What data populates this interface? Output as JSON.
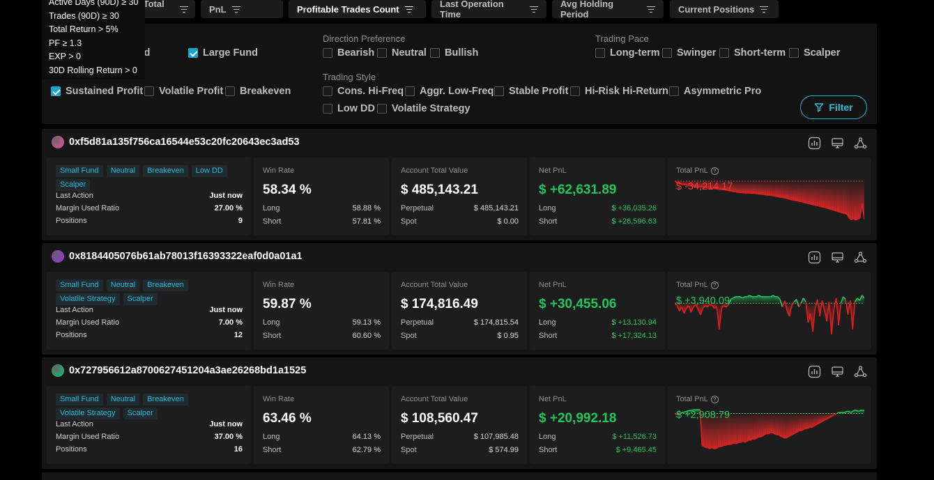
{
  "sort_bar": {
    "buttons": [
      {
        "label": "Account Total Value",
        "active": false
      },
      {
        "label": "PnL",
        "active": false
      },
      {
        "label": "Profitable Trades Count",
        "active": true
      },
      {
        "label": "Last Operation Time",
        "active": false
      },
      {
        "label": "Avg Holding Period",
        "active": false
      },
      {
        "label": "Current Positions",
        "active": false
      }
    ]
  },
  "tooltip": {
    "lines": [
      "Active Days (90D) ≥ 30",
      "Trades (90D) ≥ 30",
      "Total Return > 5%",
      "PF ≥ 1.3",
      "EXP > 0",
      "30D Rolling Return > 0"
    ]
  },
  "filters": {
    "fund_size": {
      "items": [
        {
          "label": "Mid Fund",
          "checked": false
        },
        {
          "label": "Large Fund",
          "checked": true
        }
      ]
    },
    "profit_style": {
      "items": [
        {
          "label": "Sustained Profit",
          "checked": true
        },
        {
          "label": "Volatile Profit",
          "checked": false
        },
        {
          "label": "Breakeven",
          "checked": false
        }
      ]
    },
    "direction": {
      "title": "Direction Preference",
      "items": [
        {
          "label": "Bearish",
          "checked": false
        },
        {
          "label": "Neutral",
          "checked": false
        },
        {
          "label": "Bullish",
          "checked": false
        }
      ]
    },
    "trading_style": {
      "title": "Trading Style",
      "items": [
        {
          "label": "Cons. Hi-Freq",
          "checked": false
        },
        {
          "label": "Aggr. Low-Freq",
          "checked": false
        },
        {
          "label": "Stable Profit",
          "checked": false
        },
        {
          "label": "Hi-Risk Hi-Return",
          "checked": false
        },
        {
          "label": "Asymmetric Pro",
          "checked": false
        },
        {
          "label": "Low DD",
          "checked": false
        },
        {
          "label": "Volatile Strategy",
          "checked": false
        }
      ]
    },
    "pace": {
      "title": "Trading Pace",
      "items": [
        {
          "label": "Long-term",
          "checked": false
        },
        {
          "label": "Swinger",
          "checked": false
        },
        {
          "label": "Short-term",
          "checked": false
        },
        {
          "label": "Scalper",
          "checked": false
        }
      ]
    },
    "filter_button": "Filter"
  },
  "labels": {
    "last_action": "Last Action",
    "margin_used_ratio": "Margin Used Ratio",
    "positions": "Positions",
    "win_rate": "Win Rate",
    "long": "Long",
    "short": "Short",
    "account_total_value": "Account Total Value",
    "perpetual": "Perpetual",
    "spot": "Spot",
    "net_pnl": "Net PnL",
    "total_pnl": "Total PnL"
  },
  "traders": [
    {
      "address": "0xf5d81a135f756ca16544e53c20fc20643ec3ad53",
      "avatar_color": "#c0568f",
      "tags": [
        "Small Fund",
        "Neutral",
        "Breakeven",
        "Low DD",
        "Scalper"
      ],
      "last_action": "Just now",
      "margin_used_ratio": "27.00 %",
      "positions": "9",
      "win_rate": "58.34 %",
      "win_long": "58.88 %",
      "win_short": "57.81 %",
      "account_total_value": "$ 485,143.21",
      "perpetual": "$ 485,143.21",
      "spot": "$ 0.00",
      "net_pnl": "$ +62,631.89",
      "pnl_long": "$ +36,035.26",
      "pnl_short": "$ +26,596.63",
      "total_pnl": "$ -34,214.17",
      "total_pnl_sign": "neg",
      "total_pnl_series": [
        0,
        -1.2,
        -2,
        -2.6,
        -3.1,
        -3.3,
        -3.8,
        -4.2,
        -4.4,
        -4.6,
        -4.9,
        -5.2,
        -5.4,
        -5.5,
        -5.7,
        -6.0,
        -6.3,
        -6.5,
        -6.7,
        -6.9,
        -7.1,
        -7.3,
        -7.6,
        -7.9,
        -8.2,
        -8.6,
        -9.0,
        -9.4,
        -9.7,
        -10.0,
        -10.2,
        -10.4,
        -10.5,
        -10.6,
        -10.7,
        -10.8,
        -10.9,
        -11.1,
        -11.3,
        -11.5,
        -11.8,
        -12.0,
        -12.4,
        -12.6,
        -12.7,
        -13.0,
        -13.4,
        -13.8,
        -14.2,
        -14.6,
        -15.0,
        -15.4,
        -15.8,
        -16.5,
        -16.9,
        -17.3,
        -17.6,
        -18.0,
        -18.4,
        -18.9,
        -19.4,
        -20.0,
        -20.4,
        -21.0,
        -21.4,
        -21.8,
        -22.2,
        -22.9,
        -23.3,
        -23.7,
        -24.3,
        -24.9,
        -25.5,
        -26.0,
        -26.7,
        -27.3,
        -27.9,
        -28.5,
        -29.1,
        -29.7,
        -33.0,
        -34.8,
        -33.6,
        -35.0,
        -34.2,
        -33.0,
        -20.0,
        -34.2
      ]
    },
    {
      "address": "0x8184405076b61ab78013f16393322eaf0d0a01a1",
      "avatar_color": "#8a3fc0",
      "tags": [
        "Small Fund",
        "Neutral",
        "Breakeven",
        "Volatile Strategy",
        "Scalper"
      ],
      "last_action": "Just now",
      "margin_used_ratio": "7.00 %",
      "positions": "12",
      "win_rate": "59.87 %",
      "win_long": "59.13 %",
      "win_short": "60.60 %",
      "account_total_value": "$ 174,816.49",
      "perpetual": "$ 174,815.54",
      "spot": "$ 0.95",
      "net_pnl": "$ +30,455.06",
      "pnl_long": "$ +13,130.94",
      "pnl_short": "$ +17,324.13",
      "total_pnl": "$ +3,940.09",
      "total_pnl_sign": "pos",
      "total_pnl_series": [
        0,
        -2,
        -6,
        -3,
        -8,
        -4,
        -2,
        -7,
        -3,
        -1,
        -5,
        -9,
        -4,
        -2,
        -3,
        -1,
        -2,
        -4,
        -3,
        -20,
        -4,
        -2,
        -3,
        -1,
        3,
        4,
        5,
        5,
        5,
        4,
        5,
        5,
        6,
        5,
        5,
        5,
        6,
        5,
        5,
        5,
        5,
        5,
        6,
        5,
        5,
        3,
        -3,
        2,
        -6,
        -10,
        -2,
        1,
        3,
        -3,
        0,
        4,
        1,
        -15,
        -8,
        -22,
        -4,
        3,
        -10,
        2,
        -6,
        -14,
        1,
        -24,
        -5,
        4,
        -17,
        0,
        5,
        3,
        -9,
        2,
        -20,
        1,
        4,
        2,
        6,
        4
      ]
    },
    {
      "address": "0x727956612a8700627451204a3ae26268bd1a1525",
      "avatar_color": "#2aa36b",
      "tags": [
        "Small Fund",
        "Neutral",
        "Breakeven",
        "Volatile Strategy",
        "Scalper"
      ],
      "last_action": "Just now",
      "margin_used_ratio": "37.00 %",
      "positions": "16",
      "win_rate": "63.46 %",
      "win_long": "64.13 %",
      "win_short": "62.79 %",
      "account_total_value": "$ 108,560.47",
      "perpetual": "$ 107,985.48",
      "spot": "$ 574.99",
      "net_pnl": "$ +20,992.18",
      "pnl_long": "$ +11,526.73",
      "pnl_short": "$ +9,465.45",
      "total_pnl": "$ +2,908.79",
      "total_pnl_sign": "pos",
      "total_pnl_series": [
        0,
        -1,
        -1,
        0,
        1,
        1.5,
        2,
        2.5,
        3,
        3.2,
        3.5,
        3.6,
        3.6,
        3.6,
        -30,
        -31,
        -32,
        -32,
        -33,
        -32,
        -33,
        -33,
        -32,
        -31,
        -31,
        -30,
        -30,
        -29,
        -29,
        -29,
        -28,
        -28,
        -28,
        -27,
        -27,
        -26,
        -27,
        -26,
        -25,
        -25,
        -24,
        -24,
        -23,
        -22,
        -22,
        -21,
        -20,
        -19,
        -19,
        -18,
        -18,
        -19,
        -20,
        -20,
        -21,
        -22,
        -23,
        -23,
        -22,
        -21,
        -20,
        -19,
        -18,
        -17,
        -16,
        -16,
        -15,
        -14,
        -14,
        -13,
        -13,
        -12,
        -11,
        -10,
        -9,
        -8,
        -7,
        -6,
        -5,
        -4,
        -3,
        -2,
        -1,
        0,
        1,
        1,
        1,
        1,
        2,
        2,
        1,
        2,
        3,
        3,
        2,
        3,
        3,
        2.9
      ]
    }
  ]
}
